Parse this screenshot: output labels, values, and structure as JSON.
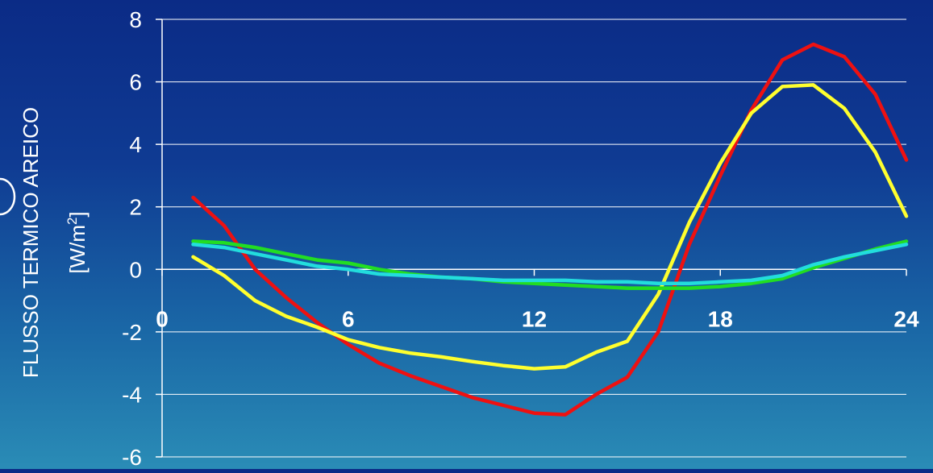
{
  "chart_data": {
    "type": "line",
    "title": "",
    "xlabel": "",
    "ylabel_line1": "FLUSSO TERMICO AREICO",
    "ylabel_unit_base": "[W/m",
    "ylabel_unit_sup": "2",
    "ylabel_unit_close": "]",
    "xlim": [
      0,
      24
    ],
    "ylim": [
      -6,
      8
    ],
    "x_ticks": [
      0,
      6,
      12,
      18,
      24
    ],
    "x_tick_labels": [
      "0",
      "6",
      "12",
      "18",
      "24"
    ],
    "y_ticks": [
      -6,
      -4,
      -2,
      0,
      2,
      4,
      6,
      8
    ],
    "y_tick_labels": [
      "-6",
      "-4",
      "-2",
      "0",
      "2",
      "4",
      "6",
      "8"
    ],
    "grid": "horizontal",
    "x": [
      1,
      2,
      3,
      4,
      5,
      6,
      7,
      8,
      9,
      10,
      11,
      12,
      13,
      14,
      15,
      16,
      17,
      18,
      19,
      20,
      21,
      22,
      23,
      24
    ],
    "series": [
      {
        "color": "#ee1111",
        "values": [
          2.3,
          1.4,
          0.0,
          -0.9,
          -1.7,
          -2.4,
          -3.0,
          -3.4,
          -3.75,
          -4.1,
          -4.35,
          -4.6,
          -4.65,
          -4.0,
          -3.45,
          -2.0,
          0.8,
          3.0,
          5.1,
          6.7,
          7.2,
          6.8,
          5.6,
          3.5
        ]
      },
      {
        "color": "#ffff2e",
        "values": [
          0.4,
          -0.2,
          -1.0,
          -1.5,
          -1.85,
          -2.25,
          -2.5,
          -2.68,
          -2.8,
          -2.95,
          -3.08,
          -3.18,
          -3.12,
          -2.65,
          -2.3,
          -0.8,
          1.5,
          3.4,
          5.0,
          5.85,
          5.9,
          5.15,
          3.75,
          1.7
        ]
      },
      {
        "color": "#22dd22",
        "values": [
          0.9,
          0.85,
          0.7,
          0.5,
          0.3,
          0.2,
          0.0,
          -0.15,
          -0.25,
          -0.3,
          -0.4,
          -0.45,
          -0.5,
          -0.55,
          -0.6,
          -0.6,
          -0.6,
          -0.55,
          -0.45,
          -0.3,
          0.05,
          0.35,
          0.65,
          0.9
        ]
      },
      {
        "color": "#22dddd",
        "values": [
          0.8,
          0.7,
          0.5,
          0.3,
          0.1,
          0.0,
          -0.15,
          -0.2,
          -0.25,
          -0.3,
          -0.35,
          -0.35,
          -0.35,
          -0.4,
          -0.4,
          -0.45,
          -0.45,
          -0.4,
          -0.35,
          -0.2,
          0.15,
          0.4,
          0.6,
          0.8
        ]
      }
    ]
  }
}
